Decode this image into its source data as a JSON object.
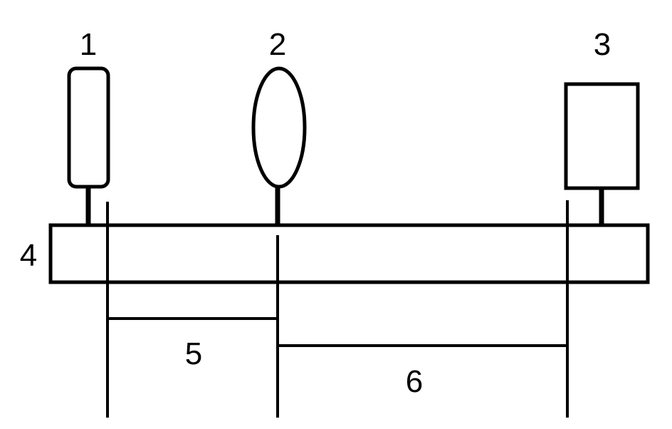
{
  "diagram": {
    "labels": {
      "component_1": "1",
      "component_2": "2",
      "component_3": "3",
      "bar": "4",
      "distance_5": "5",
      "distance_6": "6"
    },
    "colors": {
      "stroke": "#000000",
      "background": "#ffffff"
    }
  }
}
